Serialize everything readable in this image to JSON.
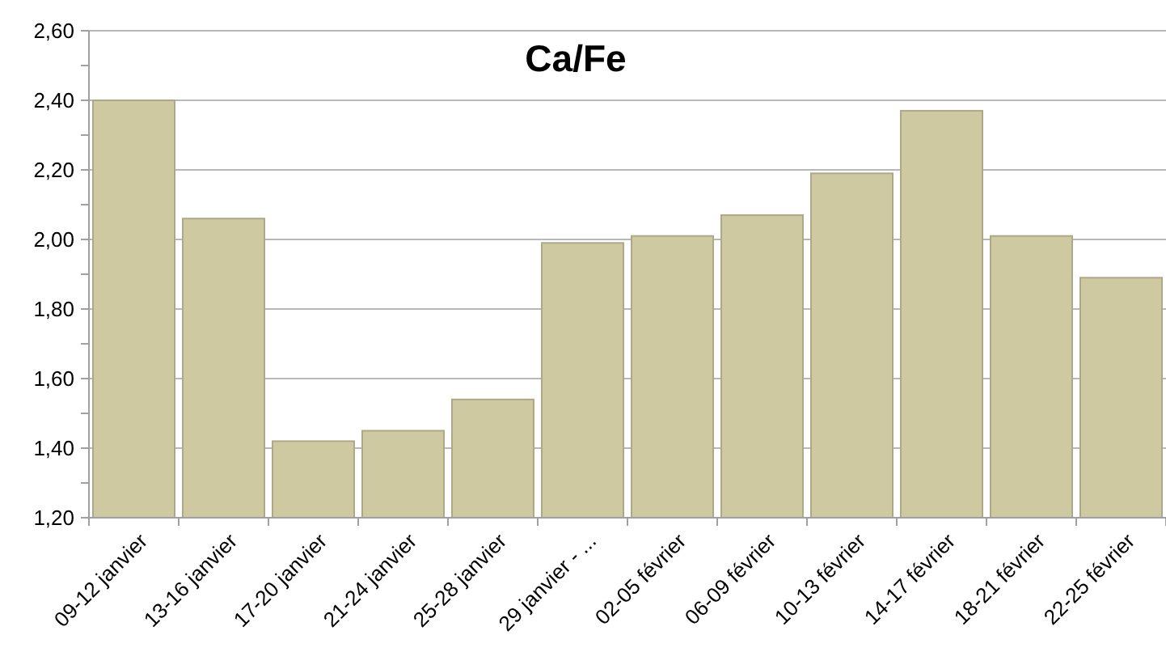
{
  "chart_data": {
    "type": "bar",
    "title": "Ca/Fe",
    "categories": [
      "09-12 janvier",
      "13-16 janvier",
      "17-20 janvier",
      "21-24 janvier",
      "25-28 janvier",
      "29 janvier - ...",
      "02-05 février",
      "06-09 février",
      "10-13 février",
      "14-17 février",
      "18-21 février",
      "22-25 février"
    ],
    "values": [
      2.4,
      2.06,
      1.42,
      1.45,
      1.54,
      1.99,
      2.01,
      2.07,
      2.19,
      2.37,
      2.01,
      1.89
    ],
    "color": "#cfc9a1",
    "ylim": [
      1.2,
      2.6
    ],
    "yticks": [
      {
        "value": 1.2,
        "label": "1,20"
      },
      {
        "value": 1.3,
        "label": null
      },
      {
        "value": 1.4,
        "label": "1,40"
      },
      {
        "value": 1.5,
        "label": null
      },
      {
        "value": 1.6,
        "label": "1,60"
      },
      {
        "value": 1.7,
        "label": null
      },
      {
        "value": 1.8,
        "label": "1,80"
      },
      {
        "value": 1.9,
        "label": null
      },
      {
        "value": 2.0,
        "label": "2,00"
      },
      {
        "value": 2.1,
        "label": null
      },
      {
        "value": 2.2,
        "label": "2,20"
      },
      {
        "value": 2.3,
        "label": null
      },
      {
        "value": 2.4,
        "label": "2,40"
      },
      {
        "value": 2.5,
        "label": null
      },
      {
        "value": 2.6,
        "label": "2,60"
      }
    ],
    "grid": "y"
  }
}
